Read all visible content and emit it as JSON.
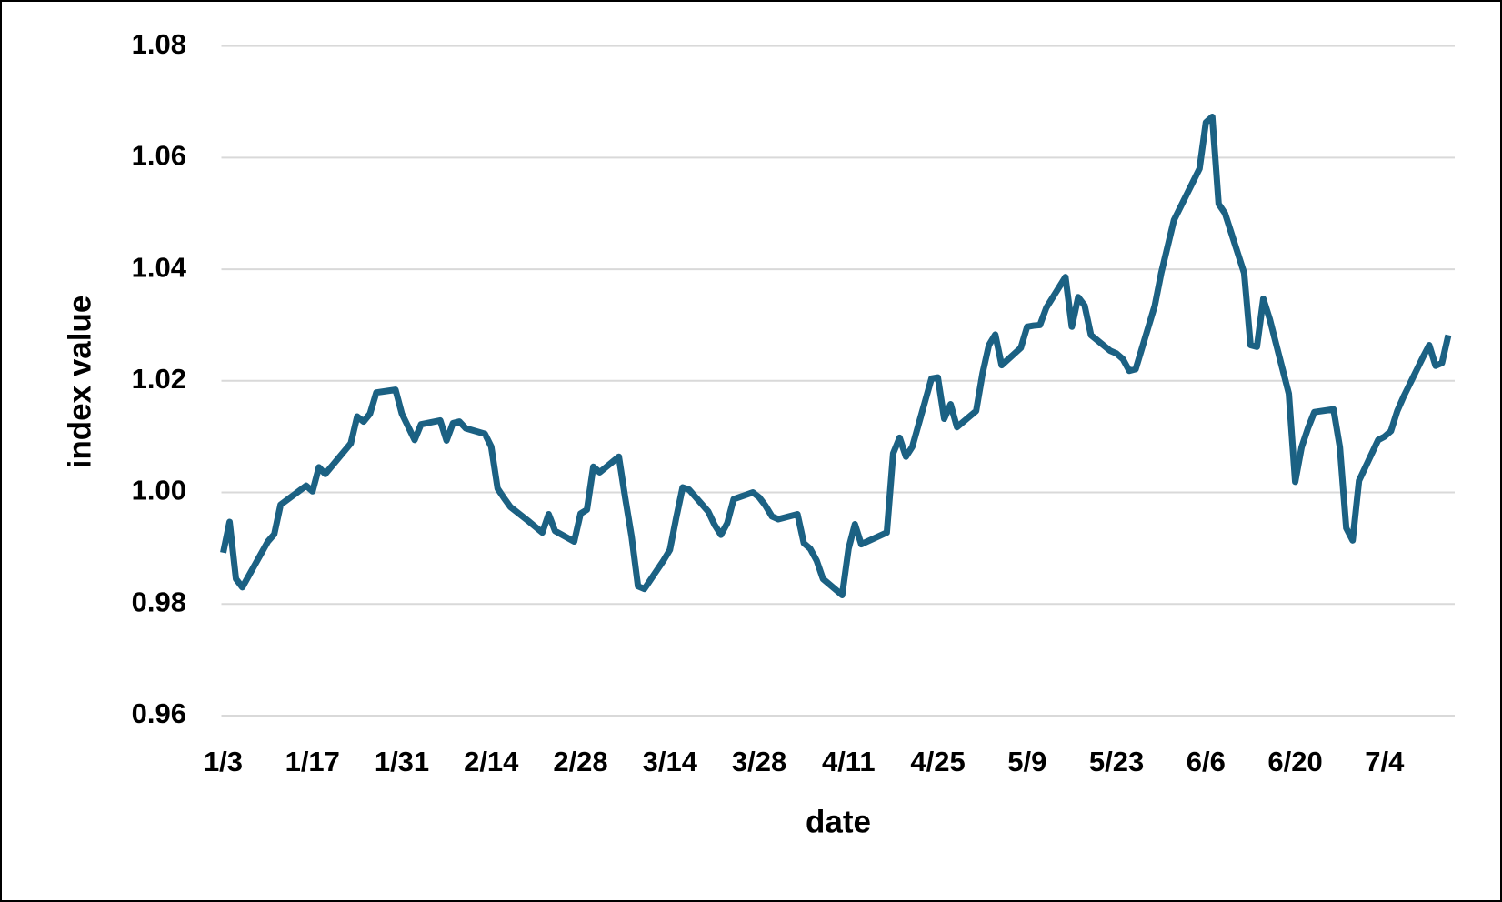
{
  "chart_data": {
    "type": "line",
    "x_label": "date",
    "y_label": "index value",
    "x": [
      0,
      1,
      2,
      3,
      7,
      8,
      9,
      13,
      14,
      15,
      16,
      20,
      21,
      22,
      23,
      24,
      27,
      28,
      30,
      31,
      34,
      35,
      36,
      37,
      38,
      41,
      42,
      43,
      44,
      45,
      48,
      50,
      51,
      52,
      55,
      56,
      57,
      58,
      59,
      62,
      63,
      64,
      65,
      66,
      69,
      70,
      71,
      72,
      73,
      76,
      77,
      78,
      79,
      80,
      83,
      84,
      85,
      86,
      87,
      90,
      91,
      92,
      93,
      94,
      97,
      98,
      99,
      100,
      104,
      105,
      106,
      107,
      108,
      111,
      112,
      113,
      114,
      115,
      118,
      119,
      120,
      121,
      122,
      125,
      126,
      127,
      128,
      129,
      132,
      133,
      134,
      135,
      136,
      139,
      140,
      141,
      142,
      143,
      146,
      147,
      149,
      153,
      154,
      155,
      156,
      157,
      160,
      161,
      162,
      163,
      164,
      167,
      168,
      169,
      170,
      171,
      174,
      175,
      176,
      177,
      178,
      181,
      182,
      183,
      184,
      185,
      188,
      189,
      190,
      191,
      192
    ],
    "values": [
      0.9892,
      0.9947,
      0.9845,
      0.983,
      0.9912,
      0.9925,
      0.9978,
      1.0012,
      1.0002,
      1.0045,
      1.0033,
      1.0088,
      1.0136,
      1.0127,
      1.0141,
      1.0179,
      1.0184,
      1.0141,
      1.0094,
      1.0122,
      1.0129,
      1.0093,
      1.0124,
      1.0127,
      1.0115,
      1.0105,
      1.0082,
      1.0007,
      0.999,
      0.9974,
      0.9947,
      0.9928,
      0.9961,
      0.9931,
      0.9912,
      0.9962,
      0.9969,
      1.0046,
      1.0036,
      1.0064,
      0.999,
      0.9921,
      0.9832,
      0.9827,
      0.9878,
      0.9897,
      0.9955,
      1.0009,
      1.0005,
      0.9966,
      0.9942,
      0.9924,
      0.9945,
      0.9988,
      1.0,
      0.9991,
      0.9976,
      0.9957,
      0.9952,
      0.9961,
      0.9909,
      0.9899,
      0.9878,
      0.9845,
      0.9816,
      0.9899,
      0.9943,
      0.9907,
      0.9928,
      1.007,
      1.0098,
      1.0064,
      1.0082,
      1.0204,
      1.0206,
      1.0132,
      1.0158,
      1.0117,
      1.0146,
      1.0213,
      1.0264,
      1.0283,
      1.0228,
      1.0259,
      1.0297,
      1.0299,
      1.03,
      1.0331,
      1.0386,
      1.0297,
      1.035,
      1.0335,
      1.0282,
      1.0254,
      1.0249,
      1.0239,
      1.0218,
      1.0221,
      1.0335,
      1.0393,
      1.0488,
      1.058,
      1.0663,
      1.0673,
      1.0517,
      1.05,
      1.0393,
      1.0264,
      1.0261,
      1.0347,
      1.0311,
      1.0177,
      1.0019,
      1.0081,
      1.0115,
      1.0144,
      1.0149,
      1.0081,
      0.9936,
      0.9914,
      1.0021,
      1.0094,
      1.01,
      1.011,
      1.0146,
      1.0172,
      1.0242,
      1.0264,
      1.0227,
      1.0232,
      1.0282
    ],
    "color": "#1b6183",
    "xlim": [
      0,
      193
    ],
    "xticks": [
      {
        "value": 0,
        "label": "1/3"
      },
      {
        "value": 14,
        "label": "1/17"
      },
      {
        "value": 28,
        "label": "1/31"
      },
      {
        "value": 42,
        "label": "2/14"
      },
      {
        "value": 56,
        "label": "2/28"
      },
      {
        "value": 70,
        "label": "3/14"
      },
      {
        "value": 84,
        "label": "3/28"
      },
      {
        "value": 98,
        "label": "4/11"
      },
      {
        "value": 112,
        "label": "4/25"
      },
      {
        "value": 126,
        "label": "5/9"
      },
      {
        "value": 140,
        "label": "5/23"
      },
      {
        "value": 154,
        "label": "6/6"
      },
      {
        "value": 168,
        "label": "6/20"
      },
      {
        "value": 182,
        "label": "7/4"
      }
    ],
    "ylim": [
      0.96,
      1.08
    ],
    "yticks": [
      {
        "value": 0.96,
        "label": "0.96"
      },
      {
        "value": 0.98,
        "label": "0.98"
      },
      {
        "value": 1.0,
        "label": "1.00"
      },
      {
        "value": 1.02,
        "label": "1.02"
      },
      {
        "value": 1.04,
        "label": "1.04"
      },
      {
        "value": 1.06,
        "label": "1.06"
      },
      {
        "value": 1.08,
        "label": "1.08"
      }
    ],
    "grid": true
  }
}
